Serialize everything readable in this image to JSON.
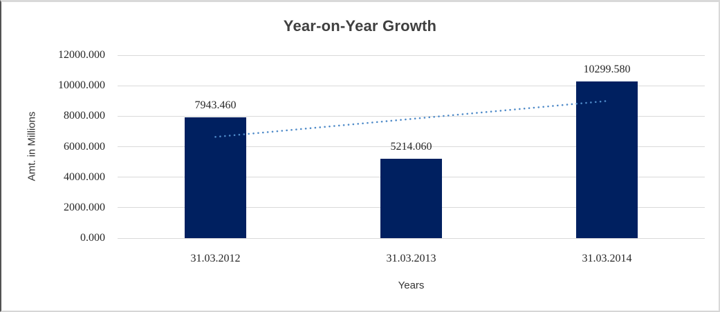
{
  "chart_data": {
    "type": "bar",
    "title": "Year-on-Year Growth",
    "xlabel": "Years",
    "ylabel": "Amt. in Millions",
    "categories": [
      "31.03.2012",
      "31.03.2013",
      "31.03.2014"
    ],
    "values": [
      7943.46,
      5214.06,
      10299.58
    ],
    "data_labels": [
      "7943.460",
      "5214.060",
      "10299.580"
    ],
    "ylim": [
      0,
      12000
    ],
    "ytick_step": 2000,
    "yticks": [
      "0.000",
      "2000.000",
      "4000.000",
      "6000.000",
      "8000.000",
      "10000.000",
      "12000.000"
    ],
    "grid": true,
    "legend": false,
    "trendline": {
      "type": "linear",
      "style": "dotted"
    },
    "colors": {
      "bar": "#002060",
      "trendline": "#4e8ac8",
      "gridline": "#d9d9d9",
      "tick_text": "#262626",
      "title_text": "#404040"
    }
  }
}
